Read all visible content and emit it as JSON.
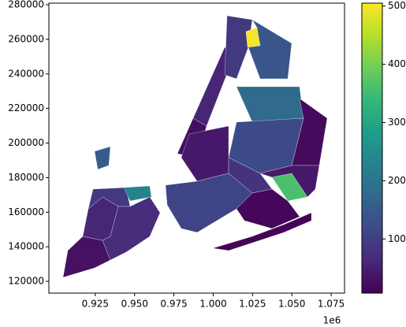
{
  "chart_data": {
    "type": "choropleth",
    "colormap": "viridis",
    "values": [
      30,
      60,
      90,
      70,
      230,
      150,
      25,
      60,
      90,
      500,
      140,
      180,
      20,
      120,
      360,
      40,
      110,
      80,
      40,
      10,
      15
    ],
    "xlim": [
      895500,
      1083500
    ],
    "xticks": [
      {
        "value": 925000,
        "label": "0.925"
      },
      {
        "value": 950000,
        "label": "0.950"
      },
      {
        "value": 975000,
        "label": "0.975"
      },
      {
        "value": 1000000,
        "label": "1.000"
      },
      {
        "value": 1025000,
        "label": "1.025"
      },
      {
        "value": 1050000,
        "label": "1.050"
      },
      {
        "value": 1075000,
        "label": "1.075"
      }
    ],
    "x_offset_label": "1e6",
    "ylim": [
      113200,
      280900
    ],
    "yticks": [
      120000,
      140000,
      160000,
      180000,
      200000,
      220000,
      240000,
      260000,
      280000
    ],
    "clim": [
      7,
      505
    ],
    "cticks": [
      100,
      200,
      300,
      400,
      500
    ]
  }
}
